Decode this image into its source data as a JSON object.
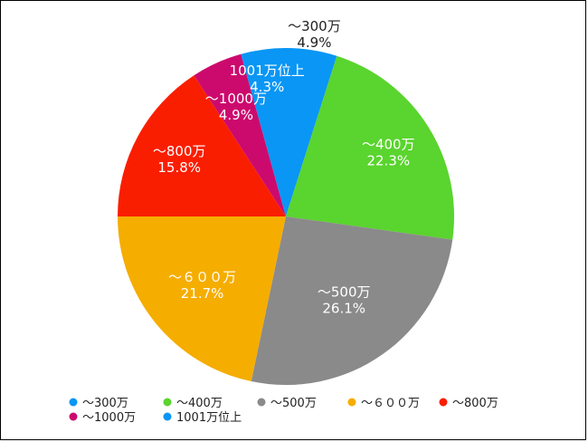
{
  "chart_data": {
    "type": "pie",
    "categories": [
      "～300万",
      "～400万",
      "～500万",
      "～６００万",
      "～800万",
      "～1000万",
      "1001万位上"
    ],
    "values": [
      4.9,
      22.3,
      26.1,
      21.7,
      15.8,
      4.9,
      4.3
    ],
    "value_labels": [
      "4.9%",
      "22.3%",
      "26.1%",
      "21.7%",
      "15.8%",
      "4.9%",
      "4.3%"
    ],
    "colors": [
      "#0a96f5",
      "#5ad42e",
      "#8a8a8a",
      "#f5ad00",
      "#fa1e00",
      "#cc0a6e",
      "#0a96f5"
    ],
    "label_colors": [
      "#222222",
      "#ffffff",
      "#ffffff",
      "#ffffff",
      "#ffffff",
      "#ffffff",
      "#ffffff"
    ],
    "legend_placement": "bottom",
    "start_angle_deg": 0,
    "direction": "clockwise"
  }
}
